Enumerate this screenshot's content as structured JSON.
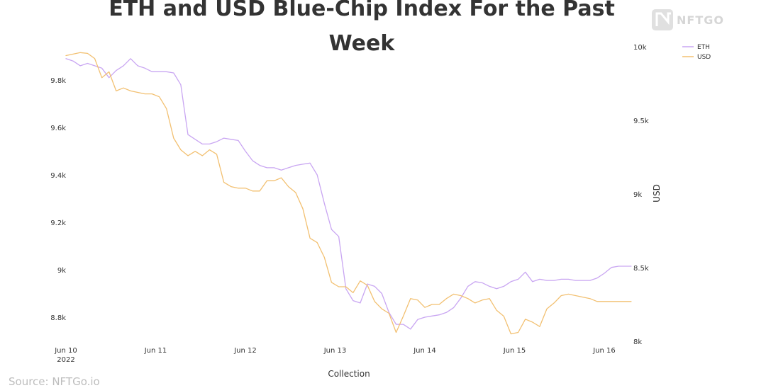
{
  "watermark": {
    "brand": "NFTGO",
    "logo_icon": "nftgo-logo-icon"
  },
  "source": "Source: NFTGo.io",
  "chart_data": {
    "type": "line",
    "title_line1": "ETH and USD Blue-Chip Index For the Past",
    "title_line2": "Week",
    "xlabel": "Collection",
    "y2label": "USD",
    "x_ticks": [
      {
        "label": "Jun 10",
        "sub": "2022",
        "x": 0
      },
      {
        "label": "Jun 11",
        "x": 1
      },
      {
        "label": "Jun 12",
        "x": 2
      },
      {
        "label": "Jun 13",
        "x": 3
      },
      {
        "label": "Jun 14",
        "x": 4
      },
      {
        "label": "Jun 15",
        "x": 5
      },
      {
        "label": "Jun 16",
        "x": 6
      }
    ],
    "x_range": [
      0,
      6.3
    ],
    "y_left": {
      "ticks": [
        8800,
        9000,
        9200,
        9400,
        9600,
        9800
      ],
      "labels": [
        "8.8k",
        "9k",
        "9.2k",
        "9.4k",
        "9.6k",
        "9.8k"
      ],
      "range": [
        8750,
        9900
      ]
    },
    "y_right": {
      "ticks": [
        8000,
        8500,
        9000,
        9500,
        10000
      ],
      "labels": [
        "8k",
        "8.5k",
        "9k",
        "9.5k",
        "10k"
      ],
      "range": [
        8000,
        10000
      ]
    },
    "legend": [
      {
        "name": "ETH",
        "color": "#c9a6f2"
      },
      {
        "name": "USD",
        "color": "#f2c071"
      }
    ],
    "series": [
      {
        "name": "ETH",
        "axis": "left",
        "color": "#c9a6f2",
        "x": [
          0,
          0.08,
          0.16,
          0.24,
          0.32,
          0.4,
          0.48,
          0.56,
          0.64,
          0.72,
          0.8,
          0.88,
          0.96,
          1.04,
          1.12,
          1.2,
          1.28,
          1.36,
          1.44,
          1.52,
          1.6,
          1.68,
          1.76,
          1.84,
          1.92,
          2.0,
          2.08,
          2.16,
          2.24,
          2.32,
          2.4,
          2.48,
          2.56,
          2.64,
          2.72,
          2.8,
          2.88,
          2.96,
          3.04,
          3.12,
          3.2,
          3.28,
          3.36,
          3.44,
          3.52,
          3.6,
          3.68,
          3.76,
          3.84,
          3.92,
          4.0,
          4.08,
          4.16,
          4.24,
          4.32,
          4.4,
          4.48,
          4.56,
          4.64,
          4.72,
          4.8,
          4.88,
          4.96,
          5.04,
          5.12,
          5.2,
          5.28,
          5.36,
          5.44,
          5.52,
          5.6,
          5.68,
          5.76,
          5.84,
          5.92,
          6.0,
          6.08,
          6.16,
          6.24,
          6.3
        ],
        "values": [
          9890,
          9880,
          9860,
          9870,
          9860,
          9850,
          9810,
          9840,
          9860,
          9890,
          9860,
          9850,
          9835,
          9835,
          9835,
          9830,
          9780,
          9570,
          9550,
          9530,
          9530,
          9540,
          9555,
          9550,
          9545,
          9500,
          9460,
          9440,
          9430,
          9430,
          9420,
          9430,
          9440,
          9445,
          9450,
          9400,
          9280,
          9170,
          9140,
          8920,
          8870,
          8860,
          8940,
          8930,
          8900,
          8820,
          8770,
          8770,
          8750,
          8790,
          8800,
          8805,
          8810,
          8820,
          8840,
          8880,
          8930,
          8950,
          8945,
          8930,
          8920,
          8930,
          8950,
          8960,
          8990,
          8950,
          8960,
          8955,
          8955,
          8960,
          8960,
          8955,
          8955,
          8955,
          8965,
          8985,
          9010,
          9015,
          9015,
          9015
        ]
      },
      {
        "name": "USD",
        "axis": "right",
        "color": "#f2c071",
        "x": [
          0,
          0.08,
          0.16,
          0.24,
          0.32,
          0.4,
          0.48,
          0.56,
          0.64,
          0.72,
          0.8,
          0.88,
          0.96,
          1.04,
          1.12,
          1.2,
          1.28,
          1.36,
          1.44,
          1.52,
          1.6,
          1.68,
          1.76,
          1.84,
          1.92,
          2.0,
          2.08,
          2.16,
          2.24,
          2.32,
          2.4,
          2.48,
          2.56,
          2.64,
          2.72,
          2.8,
          2.88,
          2.96,
          3.04,
          3.12,
          3.2,
          3.28,
          3.36,
          3.44,
          3.52,
          3.6,
          3.68,
          3.76,
          3.84,
          3.92,
          4.0,
          4.08,
          4.16,
          4.24,
          4.32,
          4.4,
          4.48,
          4.56,
          4.64,
          4.72,
          4.8,
          4.88,
          4.96,
          5.04,
          5.12,
          5.2,
          5.28,
          5.36,
          5.44,
          5.52,
          5.6,
          5.68,
          5.76,
          5.84,
          5.92,
          6.0,
          6.08,
          6.16,
          6.24,
          6.3
        ],
        "values": [
          9940,
          9950,
          9960,
          9955,
          9920,
          9790,
          9830,
          9700,
          9720,
          9700,
          9690,
          9680,
          9680,
          9660,
          9580,
          9380,
          9300,
          9260,
          9290,
          9260,
          9300,
          9270,
          9080,
          9050,
          9040,
          9040,
          9020,
          9020,
          9090,
          9090,
          9110,
          9050,
          9010,
          8900,
          8700,
          8670,
          8570,
          8400,
          8370,
          8370,
          8330,
          8410,
          8380,
          8270,
          8220,
          8190,
          8060,
          8170,
          8290,
          8280,
          8230,
          8250,
          8250,
          8290,
          8320,
          8310,
          8290,
          8260,
          8280,
          8290,
          8210,
          8170,
          8050,
          8060,
          8150,
          8130,
          8100,
          8220,
          8260,
          8310,
          8320,
          8310,
          8300,
          8290,
          8270,
          8270,
          8270,
          8270,
          8270,
          8270
        ]
      }
    ],
    "grid": false,
    "legend_position": "top-right"
  }
}
